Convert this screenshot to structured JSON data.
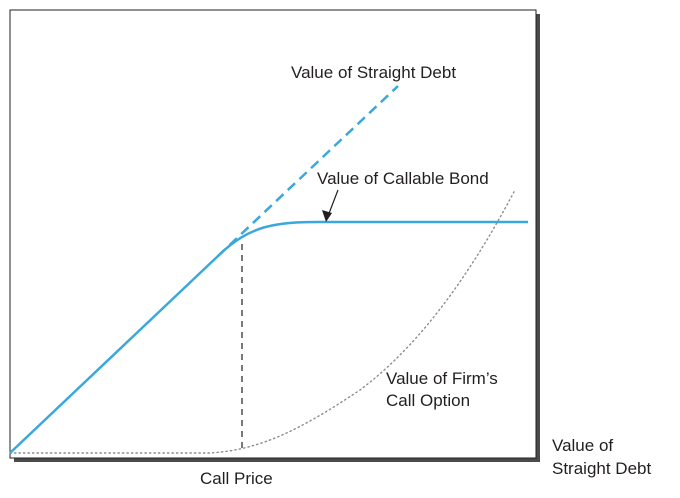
{
  "diagram": {
    "labels": {
      "straight_debt": "Value of Straight Debt",
      "callable_bond": "Value of Callable Bond",
      "call_option_line1": "Value of Firm’s",
      "call_option_line2": "Call Option",
      "x_axis_line1": "Value of",
      "x_axis_line2": "Straight Debt",
      "call_price": "Call Price"
    },
    "colors": {
      "curve": "#3aa8dc",
      "axis": "#231f20",
      "option_dots": "#8c8c8c"
    }
  }
}
